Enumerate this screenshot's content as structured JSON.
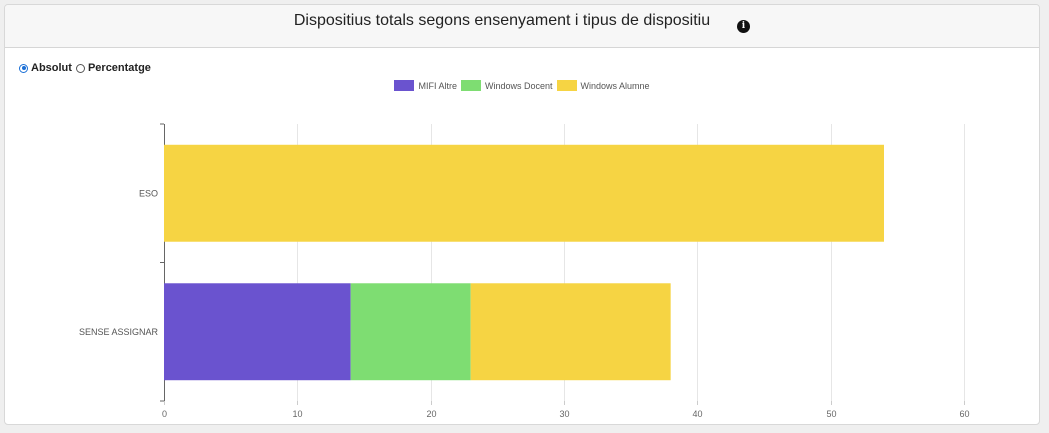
{
  "header": {
    "title": "Dispositius totals segons ensenyament i tipus de dispositiu"
  },
  "mode": {
    "options": [
      "Absolut",
      "Percentatge"
    ],
    "selected": "Absolut"
  },
  "colors": {
    "MIFI Altre": "#6a53cf",
    "Windows Docent": "#7edd72",
    "Windows Alumne": "#f6d443"
  },
  "chart_data": {
    "type": "bar",
    "orientation": "horizontal",
    "stacked": true,
    "categories": [
      "ESO",
      "SENSE ASSIGNAR"
    ],
    "series": [
      {
        "name": "MIFI Altre",
        "values": [
          0,
          14
        ]
      },
      {
        "name": "Windows Docent",
        "values": [
          0,
          9
        ]
      },
      {
        "name": "Windows Alumne",
        "values": [
          54,
          15
        ]
      }
    ],
    "xlim": [
      0,
      60
    ],
    "xticks": [
      0,
      10,
      20,
      30,
      40,
      50,
      60
    ],
    "grid": true,
    "legend": "top-center",
    "title": "",
    "xlabel": "",
    "ylabel": ""
  }
}
